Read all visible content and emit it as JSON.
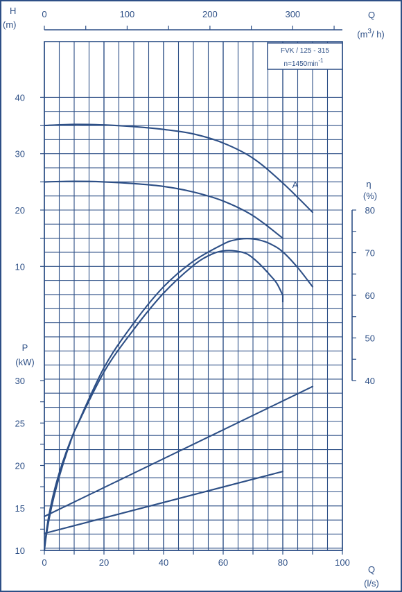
{
  "chart_data": {
    "type": "line",
    "info_box": {
      "model": "FVK / 125 - 315",
      "speed": "n=1450min",
      "speed_sup": "-1"
    },
    "x_bottom": {
      "label": "Q",
      "unit": "(l/s)",
      "range": [
        0,
        100
      ],
      "ticks": [
        "0",
        "20",
        "40",
        "60",
        "80",
        "100"
      ]
    },
    "x_top": {
      "label": "Q",
      "unit_pre": "(m",
      "unit_sup": "3",
      "unit_post": "/ h)",
      "range": [
        0,
        360
      ],
      "ticks": [
        "0",
        "100",
        "200",
        "300"
      ]
    },
    "head": {
      "label": "H",
      "unit": "(m)",
      "range": [
        10,
        40
      ],
      "ticks": [
        "10",
        "20",
        "30",
        "40"
      ],
      "series": [
        {
          "x": [
            0,
            10,
            20,
            30,
            40,
            50,
            60,
            70,
            80,
            90
          ],
          "y": [
            35,
            35.2,
            35.1,
            34.8,
            34.3,
            33.5,
            31.9,
            29.2,
            24.8,
            19.6
          ]
        },
        {
          "name": "A",
          "x": [
            0,
            10,
            20,
            30,
            40,
            50,
            60,
            70,
            80
          ],
          "y": [
            25,
            25.1,
            25,
            24.7,
            24.2,
            23.2,
            21.6,
            19,
            15
          ]
        }
      ]
    },
    "efficiency": {
      "label": "η",
      "unit": "(%)",
      "range": [
        40,
        80
      ],
      "ticks": [
        "40",
        "50",
        "60",
        "70",
        "80"
      ],
      "series": [
        {
          "x": [
            10,
            20,
            30,
            40,
            50,
            60,
            64,
            68,
            72,
            76,
            80,
            85,
            90
          ],
          "y": [
            28,
            43,
            53.5,
            62,
            68,
            72,
            73,
            73.3,
            73,
            72,
            70.2,
            66.5,
            62
          ]
        },
        {
          "x": [
            10,
            20,
            30,
            40,
            50,
            56,
            60,
            64,
            68,
            72,
            76,
            78,
            80
          ],
          "y": [
            28,
            42,
            52,
            60.5,
            67,
            69.6,
            70.4,
            70.4,
            69.7,
            67.5,
            64.5,
            62.8,
            60
          ]
        }
      ]
    },
    "power": {
      "label": "P",
      "unit": "(kW)",
      "range": [
        10,
        30
      ],
      "ticks": [
        "10",
        "15",
        "20",
        "25",
        "30"
      ],
      "series": [
        {
          "x": [
            0,
            90
          ],
          "y": [
            14,
            29.3
          ]
        },
        {
          "x": [
            0,
            80
          ],
          "y": [
            12,
            19.3
          ]
        }
      ]
    }
  }
}
